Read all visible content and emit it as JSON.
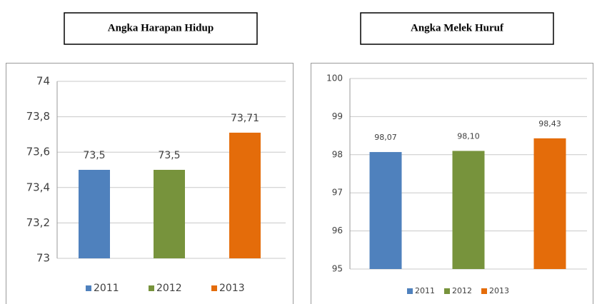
{
  "chart_data": [
    {
      "type": "bar",
      "title": "Angka Harapan Hidup",
      "series": [
        {
          "name": "2011",
          "color": "#4f81bd",
          "values": [
            73.5
          ],
          "value_labels": [
            "73,5"
          ]
        },
        {
          "name": "2012",
          "color": "#77933c",
          "values": [
            73.5
          ],
          "value_labels": [
            "73,5"
          ]
        },
        {
          "name": "2013",
          "color": "#e46c0a",
          "values": [
            73.71
          ],
          "value_labels": [
            "73,71"
          ]
        }
      ],
      "ylim": [
        73,
        74
      ],
      "yticks": [
        73,
        {
          "value": 73.2,
          "label": "73,2"
        },
        {
          "value": 73.4,
          "label": "73,4"
        },
        {
          "value": 73.6,
          "label": "73,6"
        },
        {
          "value": 73.8,
          "label": "73,8"
        },
        74
      ],
      "grid": true,
      "legend": "bottom"
    },
    {
      "type": "bar",
      "title": "Angka Melek Huruf",
      "series": [
        {
          "name": "2011",
          "color": "#4f81bd",
          "values": [
            98.07
          ],
          "value_labels": [
            "98,07"
          ]
        },
        {
          "name": "2012",
          "color": "#77933c",
          "values": [
            98.1
          ],
          "value_labels": [
            "98,10"
          ]
        },
        {
          "name": "2013",
          "color": "#e46c0a",
          "values": [
            98.43
          ],
          "value_labels": [
            "98,43"
          ]
        }
      ],
      "ylim": [
        95,
        100
      ],
      "yticks": [
        95,
        96,
        97,
        98,
        99,
        100
      ],
      "grid": true,
      "legend": "bottom"
    }
  ]
}
